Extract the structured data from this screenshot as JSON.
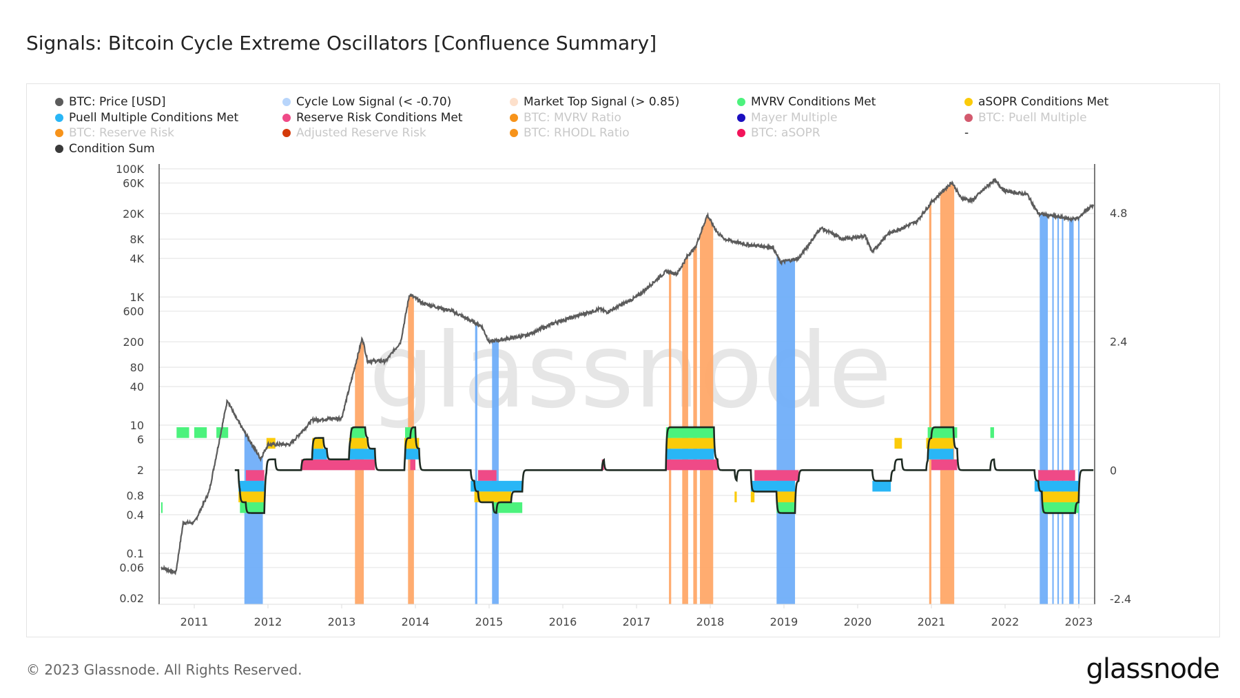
{
  "title": "Signals: Bitcoin Cycle Extreme Oscillators [Confluence Summary]",
  "footer": "© 2023 Glassnode. All Rights Reserved.",
  "logo": "glassnode",
  "watermark": "glassnode",
  "legend": [
    {
      "label": "BTC: Price [USD]",
      "color": "#5b5b5b",
      "active": true
    },
    {
      "label": "Cycle Low Signal (< -0.70)",
      "color": "#b8d5fb",
      "active": true
    },
    {
      "label": "Market Top Signal (> 0.85)",
      "color": "#fde0cb",
      "active": true
    },
    {
      "label": "MVRV Conditions Met",
      "color": "#4cf27d",
      "active": true
    },
    {
      "label": "aSOPR Conditions Met",
      "color": "#fbcb0a",
      "active": true
    },
    {
      "label": "Puell Multiple Conditions Met",
      "color": "#29b6f6",
      "active": true
    },
    {
      "label": "Reserve Risk Conditions Met",
      "color": "#ef4a87",
      "active": true
    },
    {
      "label": "BTC: MVRV Ratio",
      "color": "#f7931a",
      "active": false
    },
    {
      "label": "Mayer Multiple",
      "color": "#1b0fc0",
      "active": false
    },
    {
      "label": "BTC: Puell Multiple",
      "color": "#d35a6e",
      "active": false
    },
    {
      "label": "BTC: Reserve Risk",
      "color": "#f7931a",
      "active": false
    },
    {
      "label": "Adjusted Reserve Risk",
      "color": "#d43a0a",
      "active": false
    },
    {
      "label": "BTC: RHODL Ratio",
      "color": "#f7931a",
      "active": false
    },
    {
      "label": "BTC: aSOPR",
      "color": "#f2145a",
      "active": false
    },
    {
      "label": "-",
      "color": "",
      "active": true
    },
    {
      "label": "Condition Sum",
      "color": "#3a3a3a",
      "active": true
    }
  ],
  "chart_data": {
    "type": "line",
    "title": "Signals: Bitcoin Cycle Extreme Oscillators [Confluence Summary]",
    "x_ticks": [
      "2011",
      "2012",
      "2013",
      "2014",
      "2015",
      "2016",
      "2017",
      "2018",
      "2019",
      "2020",
      "2021",
      "2022",
      "2023"
    ],
    "x_range": [
      2010.52,
      2023.2
    ],
    "y_left": {
      "scale": "log",
      "range": [
        0.02,
        100000
      ],
      "ticks": [
        "100K",
        "60K",
        "20K",
        "8K",
        "4K",
        "1K",
        "600",
        "200",
        "80",
        "40",
        "10",
        "6",
        "2",
        "0.8",
        "0.4",
        "0.1",
        "0.06",
        "0.02"
      ],
      "tick_values": [
        100000,
        60000,
        20000,
        8000,
        4000,
        1000,
        600,
        200,
        80,
        40,
        10,
        6,
        2,
        0.8,
        0.4,
        0.1,
        0.06,
        0.02
      ]
    },
    "y_right": {
      "scale": "linear",
      "range": [
        -2.4,
        5.6
      ],
      "ticks": [
        "4.8",
        "2.4",
        "0",
        "-2.4"
      ],
      "tick_values": [
        4.8,
        2.4,
        0,
        -2.4
      ]
    },
    "grid": true,
    "legend_position": "top",
    "price": [
      [
        2010.55,
        0.06
      ],
      [
        2010.75,
        0.05
      ],
      [
        2010.85,
        0.3
      ],
      [
        2011.0,
        0.3
      ],
      [
        2011.2,
        0.9
      ],
      [
        2011.45,
        25
      ],
      [
        2011.55,
        14
      ],
      [
        2011.9,
        3
      ],
      [
        2012.0,
        5
      ],
      [
        2012.3,
        5
      ],
      [
        2012.6,
        12
      ],
      [
        2013.0,
        13
      ],
      [
        2013.28,
        230
      ],
      [
        2013.35,
        100
      ],
      [
        2013.6,
        100
      ],
      [
        2013.8,
        200
      ],
      [
        2013.92,
        1100
      ],
      [
        2014.1,
        800
      ],
      [
        2014.5,
        600
      ],
      [
        2014.9,
        350
      ],
      [
        2015.0,
        200
      ],
      [
        2015.5,
        250
      ],
      [
        2015.9,
        400
      ],
      [
        2016.5,
        650
      ],
      [
        2016.6,
        580
      ],
      [
        2017.0,
        1000
      ],
      [
        2017.4,
        2500
      ],
      [
        2017.55,
        2300
      ],
      [
        2017.7,
        4500
      ],
      [
        2017.8,
        6000
      ],
      [
        2017.96,
        19000
      ],
      [
        2018.1,
        10000
      ],
      [
        2018.2,
        8000
      ],
      [
        2018.5,
        6500
      ],
      [
        2018.85,
        6000
      ],
      [
        2018.95,
        3500
      ],
      [
        2019.2,
        4000
      ],
      [
        2019.5,
        12000
      ],
      [
        2019.8,
        8000
      ],
      [
        2020.1,
        9000
      ],
      [
        2020.2,
        5000
      ],
      [
        2020.4,
        9500
      ],
      [
        2020.8,
        15000
      ],
      [
        2021.0,
        30000
      ],
      [
        2021.28,
        62000
      ],
      [
        2021.4,
        35000
      ],
      [
        2021.55,
        32000
      ],
      [
        2021.85,
        67000
      ],
      [
        2022.0,
        45000
      ],
      [
        2022.3,
        40000
      ],
      [
        2022.45,
        20000
      ],
      [
        2022.9,
        16500
      ],
      [
        2023.0,
        17000
      ],
      [
        2023.1,
        23000
      ],
      [
        2023.2,
        27000
      ]
    ],
    "cycle_low_signal": [
      [
        2011.68,
        2011.93
      ],
      [
        2014.81,
        2014.84
      ],
      [
        2015.04,
        2015.13
      ],
      [
        2018.9,
        2019.15
      ],
      [
        2022.47,
        2022.58
      ],
      [
        2022.64,
        2022.66
      ],
      [
        2022.71,
        2022.73
      ],
      [
        2022.77,
        2022.79
      ],
      [
        2022.87,
        2022.93
      ],
      [
        2022.99,
        2023.01
      ]
    ],
    "market_top_signal": [
      [
        2013.18,
        2013.3
      ],
      [
        2013.9,
        2013.98
      ],
      [
        2017.44,
        2017.47
      ],
      [
        2017.62,
        2017.7
      ],
      [
        2017.77,
        2017.82
      ],
      [
        2017.86,
        2018.04
      ],
      [
        2020.97,
        2021.0
      ],
      [
        2021.12,
        2021.31
      ]
    ],
    "conditions": {
      "mvrv": {
        "step": 0.2,
        "positive": [
          [
            2010.76,
            2010.93
          ],
          [
            2011.0,
            2011.17
          ],
          [
            2011.3,
            2011.46
          ],
          [
            2013.12,
            2013.32
          ],
          [
            2013.86,
            2014.0
          ],
          [
            2017.4,
            2018.05
          ],
          [
            2020.95,
            2021.35
          ],
          [
            2021.8,
            2021.85
          ]
        ],
        "negative": [
          [
            2010.55,
            2010.57
          ],
          [
            2011.62,
            2011.96
          ],
          [
            2015.05,
            2015.45
          ],
          [
            2018.9,
            2019.15
          ],
          [
            2022.5,
            2023.0
          ]
        ]
      },
      "asopr": {
        "step": 0.2,
        "positive": [
          [
            2011.98,
            2012.1
          ],
          [
            2012.6,
            2012.75
          ],
          [
            2013.1,
            2013.35
          ],
          [
            2013.85,
            2014.05
          ],
          [
            2017.4,
            2018.05
          ],
          [
            2020.5,
            2020.6
          ],
          [
            2020.93,
            2021.3
          ]
        ],
        "negative": [
          [
            2011.6,
            2011.95
          ],
          [
            2014.8,
            2015.3
          ],
          [
            2018.33,
            2018.36
          ],
          [
            2018.55,
            2018.6
          ],
          [
            2018.9,
            2019.15
          ],
          [
            2022.5,
            2023.0
          ]
        ]
      },
      "puell": {
        "step": 0.2,
        "positive": [
          [
            2012.6,
            2012.8
          ],
          [
            2013.1,
            2013.45
          ],
          [
            2013.85,
            2014.05
          ],
          [
            2017.4,
            2018.05
          ],
          [
            2020.95,
            2021.3
          ]
        ],
        "negative": [
          [
            2011.6,
            2011.95
          ],
          [
            2014.75,
            2015.45
          ],
          [
            2018.55,
            2019.15
          ],
          [
            2020.2,
            2020.45
          ],
          [
            2022.4,
            2023.0
          ]
        ]
      },
      "reserve_risk": {
        "step": 0.2,
        "positive": [
          [
            2012.45,
            2013.45
          ],
          [
            2013.93,
            2014.0
          ],
          [
            2016.53,
            2016.56
          ],
          [
            2017.4,
            2018.1
          ],
          [
            2021.0,
            2021.35
          ]
        ],
        "negative": [
          [
            2011.7,
            2011.95
          ],
          [
            2014.85,
            2015.1
          ],
          [
            2018.6,
            2019.2
          ],
          [
            2022.45,
            2022.95
          ]
        ]
      }
    }
  }
}
